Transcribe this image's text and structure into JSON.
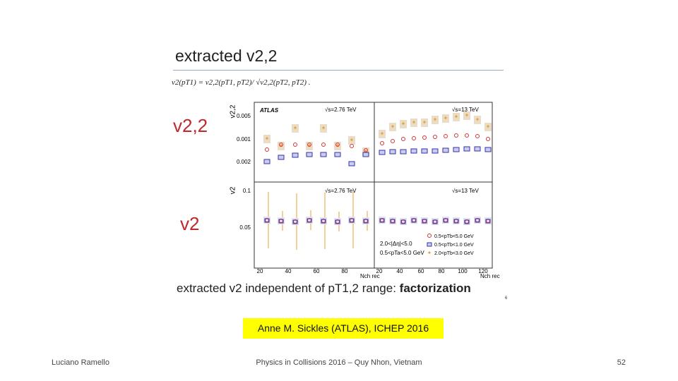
{
  "slide": {
    "title": "extracted v2,2",
    "formula": "v2(pT1) = v2,2(pT1, pT2)/ √v2,2(pT2, pT2) .",
    "left_labels": [
      "v2,2",
      "v2"
    ],
    "figure": {
      "top_y_label": "v2,2",
      "bottom_y_label": "v2",
      "top_y_ticks": [
        "0.005",
        "0.001",
        "0.002"
      ],
      "bottom_y_ticks": [
        "0.1",
        "0.05"
      ],
      "left_x_ticks": [
        "20",
        "40",
        "60",
        "80"
      ],
      "right_x_ticks": [
        "20",
        "40",
        "60",
        "80",
        "100",
        "120"
      ],
      "x_label": "Nch rec",
      "experiment": "ATLAS",
      "energy_left": "√s=2.76 TeV",
      "energy_right": "√s=13 TeV",
      "cuts": [
        "2.0<|Δη|<5.0",
        "0.5<pTa<5.0 GeV"
      ],
      "legend": [
        "0.5<pTb<5.0 GeV",
        "0.5<pTb<1.0 GeV",
        "2.0<pTb<3.0 GeV"
      ]
    },
    "caption_prefix": "extracted v2 independent of pT1,2 range: ",
    "caption_bold": "factorization",
    "page_mark": "6",
    "citation": "Anne M. Sickles (ATLAS), ICHEP 2016"
  },
  "footer": {
    "author": "Luciano Ramello",
    "event": "Physics in Collisions 2016 – Quy Nhon, Vietnam",
    "page": "52"
  }
}
